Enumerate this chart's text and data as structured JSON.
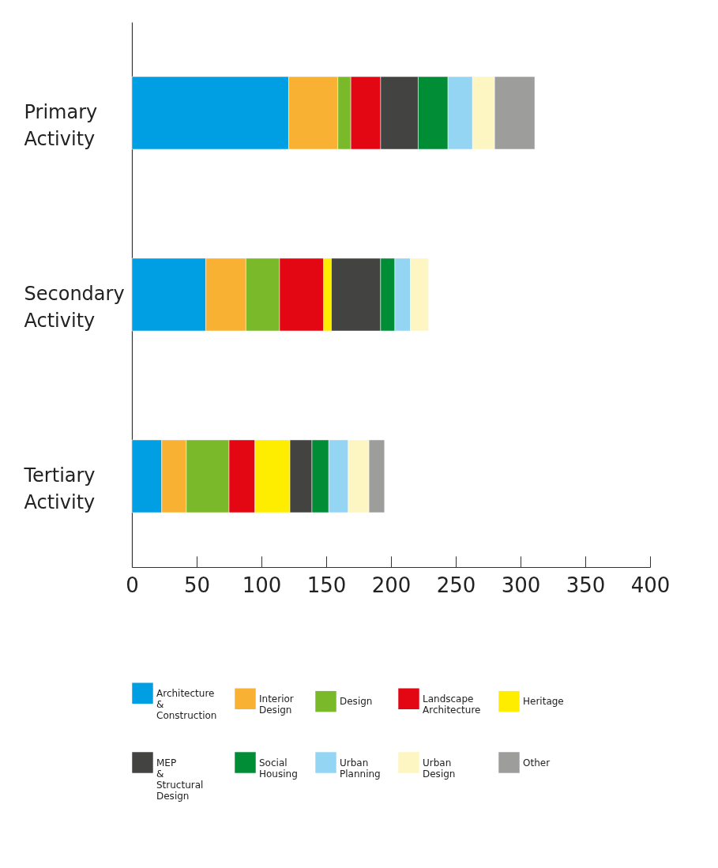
{
  "chart_data": {
    "type": "bar",
    "orientation": "horizontal",
    "stacked": true,
    "categories": [
      "Primary Activity",
      "Secondary Activity",
      "Tertiary Activity"
    ],
    "series": [
      {
        "name": "Architecture & Construction",
        "color": "#009fe3",
        "values": [
          121,
          57,
          23
        ]
      },
      {
        "name": "Interior Design",
        "color": "#f8b133",
        "values": [
          38,
          31,
          19
        ]
      },
      {
        "name": "Design",
        "color": "#7ab929",
        "values": [
          10,
          26,
          33
        ]
      },
      {
        "name": "Landscape Architecture",
        "color": "#e30613",
        "values": [
          23,
          34,
          20
        ]
      },
      {
        "name": "Heritage",
        "color": "#ffed00",
        "values": [
          null,
          6,
          27
        ]
      },
      {
        "name": "MEP & Structural Design",
        "color": "#434342",
        "values": [
          29,
          38,
          17
        ]
      },
      {
        "name": "Social Housing",
        "color": "#008d36",
        "values": [
          23,
          11,
          13
        ]
      },
      {
        "name": "Urban Planning",
        "color": "#95d5f4",
        "values": [
          19,
          12,
          15
        ]
      },
      {
        "name": "Urban Design",
        "color": "#fdf6c3",
        "values": [
          17,
          14,
          16
        ]
      },
      {
        "name": "Other",
        "color": "#9d9d9c",
        "values": [
          31,
          null,
          12
        ]
      }
    ],
    "xlim": [
      0,
      400
    ],
    "xticks": [
      0,
      50,
      100,
      150,
      200,
      250,
      300,
      350,
      400
    ],
    "grid": false,
    "legend": "bottom"
  }
}
